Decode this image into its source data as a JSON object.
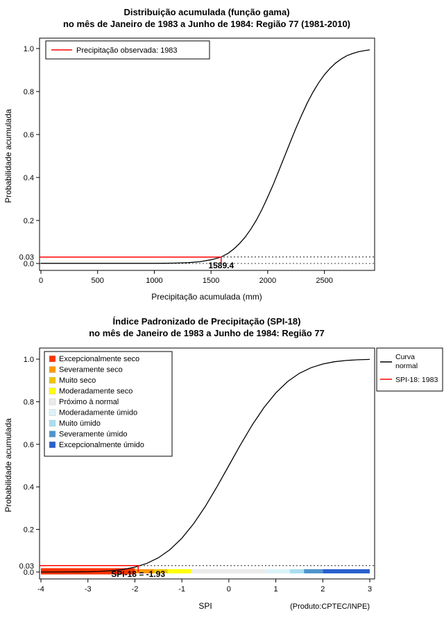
{
  "chart_data": [
    {
      "type": "line",
      "title": "Distribuição acumulada (função gama)",
      "subtitle": "no mês de Janeiro de 1983 a Junho de 1984: Região 77 (1981-2010)",
      "xlabel": "Precipitação acumulada (mm)",
      "ylabel": "Probabilidade acumulada",
      "xlim": [
        0,
        2900
      ],
      "ylim": [
        0,
        1
      ],
      "xticks": [
        0,
        500,
        1000,
        1500,
        2000,
        2500
      ],
      "yticks": [
        "0.0",
        "0.2",
        "0.4",
        "0.6",
        "0.8",
        "1.0"
      ],
      "special_ytick": {
        "label": "0.03",
        "value": 0.03,
        "color": "#ff0000"
      },
      "grid_dotted_y": [
        0,
        0.03
      ],
      "legend": {
        "items": [
          {
            "label": "Precipitação observada: 1983",
            "color": "#ff0000"
          }
        ]
      },
      "series": [
        {
          "name": "gamma-cdf",
          "color": "#000000",
          "points": [
            [
              0,
              0.0005
            ],
            [
              300,
              0.0005
            ],
            [
              600,
              0.0005
            ],
            [
              900,
              0.0005
            ],
            [
              1000,
              0.0006
            ],
            [
              1100,
              0.001
            ],
            [
              1200,
              0.002
            ],
            [
              1300,
              0.004
            ],
            [
              1400,
              0.008
            ],
            [
              1500,
              0.017
            ],
            [
              1550,
              0.024
            ],
            [
              1589.4,
              0.03
            ],
            [
              1650,
              0.047
            ],
            [
              1700,
              0.067
            ],
            [
              1750,
              0.092
            ],
            [
              1800,
              0.122
            ],
            [
              1850,
              0.159
            ],
            [
              1900,
              0.202
            ],
            [
              1950,
              0.252
            ],
            [
              2000,
              0.309
            ],
            [
              2050,
              0.369
            ],
            [
              2100,
              0.434
            ],
            [
              2150,
              0.5
            ],
            [
              2200,
              0.566
            ],
            [
              2250,
              0.631
            ],
            [
              2300,
              0.691
            ],
            [
              2350,
              0.748
            ],
            [
              2400,
              0.798
            ],
            [
              2450,
              0.841
            ],
            [
              2500,
              0.878
            ],
            [
              2550,
              0.908
            ],
            [
              2600,
              0.933
            ],
            [
              2650,
              0.952
            ],
            [
              2700,
              0.967
            ],
            [
              2750,
              0.977
            ],
            [
              2800,
              0.985
            ],
            [
              2850,
              0.99
            ],
            [
              2900,
              0.994
            ]
          ]
        }
      ],
      "observed": {
        "x": 1589.4,
        "y": 0.03,
        "annotation": "1589.4",
        "color": "#ff0000"
      }
    },
    {
      "type": "line",
      "title": "Índice Padronizado de Precipitação (SPI-18)",
      "subtitle": "no mês de Janeiro de 1983 a Junho de 1984: Região 77",
      "xlabel": "SPI",
      "ylabel": "Probabilidade acumulada",
      "footnote": "(Produto:CPTEC/INPE)",
      "xlim": [
        -4,
        3
      ],
      "ylim": [
        0,
        1
      ],
      "xticks": [
        -4,
        -3,
        -2,
        -1,
        0,
        1,
        2,
        3
      ],
      "yticks": [
        "0.0",
        "0.2",
        "0.4",
        "0.6",
        "0.8",
        "1.0"
      ],
      "special_ytick": {
        "label": "0.03",
        "value": 0.03,
        "color": "#ff0000"
      },
      "grid_dotted_y": [
        0.03
      ],
      "categories": [
        {
          "label": "Excepcionalmente seco",
          "color": "#ff3300",
          "range": [
            -4,
            -2
          ]
        },
        {
          "label": "Severamente seco",
          "color": "#ff9900",
          "range": [
            -2,
            -1.6
          ]
        },
        {
          "label": "Muito seco",
          "color": "#eec500",
          "range": [
            -1.6,
            -1.3
          ]
        },
        {
          "label": "Moderadamente seco",
          "color": "#ffff00",
          "range": [
            -1.3,
            -0.8
          ]
        },
        {
          "label": "Próximo à normal",
          "color": "#ebebeb",
          "range": [
            -0.8,
            0.8
          ]
        },
        {
          "label": "Moderadamente úmido",
          "color": "#d9f3f8",
          "range": [
            0.8,
            1.3
          ]
        },
        {
          "label": "Muito úmido",
          "color": "#a8def0",
          "range": [
            1.3,
            1.6
          ]
        },
        {
          "label": "Severamente úmido",
          "color": "#4f94cd",
          "range": [
            1.6,
            2
          ]
        },
        {
          "label": "Excepcionalmente úmido",
          "color": "#2a5fcc",
          "range": [
            2,
            3
          ]
        }
      ],
      "legend_lines": [
        {
          "label_lines": [
            "Curva",
            "normal"
          ],
          "color": "#000000"
        },
        {
          "label_lines": [
            "SPI-18: 1983"
          ],
          "color": "#ff0000"
        }
      ],
      "series": [
        {
          "name": "normal-cdf",
          "color": "#000000",
          "points": [
            [
              -4,
              0.0001
            ],
            [
              -3.75,
              0.0001
            ],
            [
              -3.5,
              0.0002
            ],
            [
              -3.25,
              0.0006
            ],
            [
              -3,
              0.0013
            ],
            [
              -2.75,
              0.003
            ],
            [
              -2.5,
              0.0062
            ],
            [
              -2.25,
              0.0122
            ],
            [
              -2,
              0.0228
            ],
            [
              -1.75,
              0.0401
            ],
            [
              -1.5,
              0.0668
            ],
            [
              -1.25,
              0.1056
            ],
            [
              -1,
              0.1587
            ],
            [
              -0.75,
              0.2266
            ],
            [
              -0.5,
              0.3085
            ],
            [
              -0.25,
              0.4013
            ],
            [
              0,
              0.5
            ],
            [
              0.25,
              0.5987
            ],
            [
              0.5,
              0.6915
            ],
            [
              0.75,
              0.7734
            ],
            [
              1,
              0.8413
            ],
            [
              1.25,
              0.8944
            ],
            [
              1.5,
              0.9332
            ],
            [
              1.75,
              0.9599
            ],
            [
              2,
              0.9772
            ],
            [
              2.25,
              0.9878
            ],
            [
              2.5,
              0.9938
            ],
            [
              2.75,
              0.997
            ],
            [
              3,
              0.9987
            ]
          ]
        }
      ],
      "observed": {
        "x": -1.93,
        "y": 0.03,
        "annotation": "SPI-18 = -1.93",
        "color": "#ff0000"
      }
    }
  ]
}
